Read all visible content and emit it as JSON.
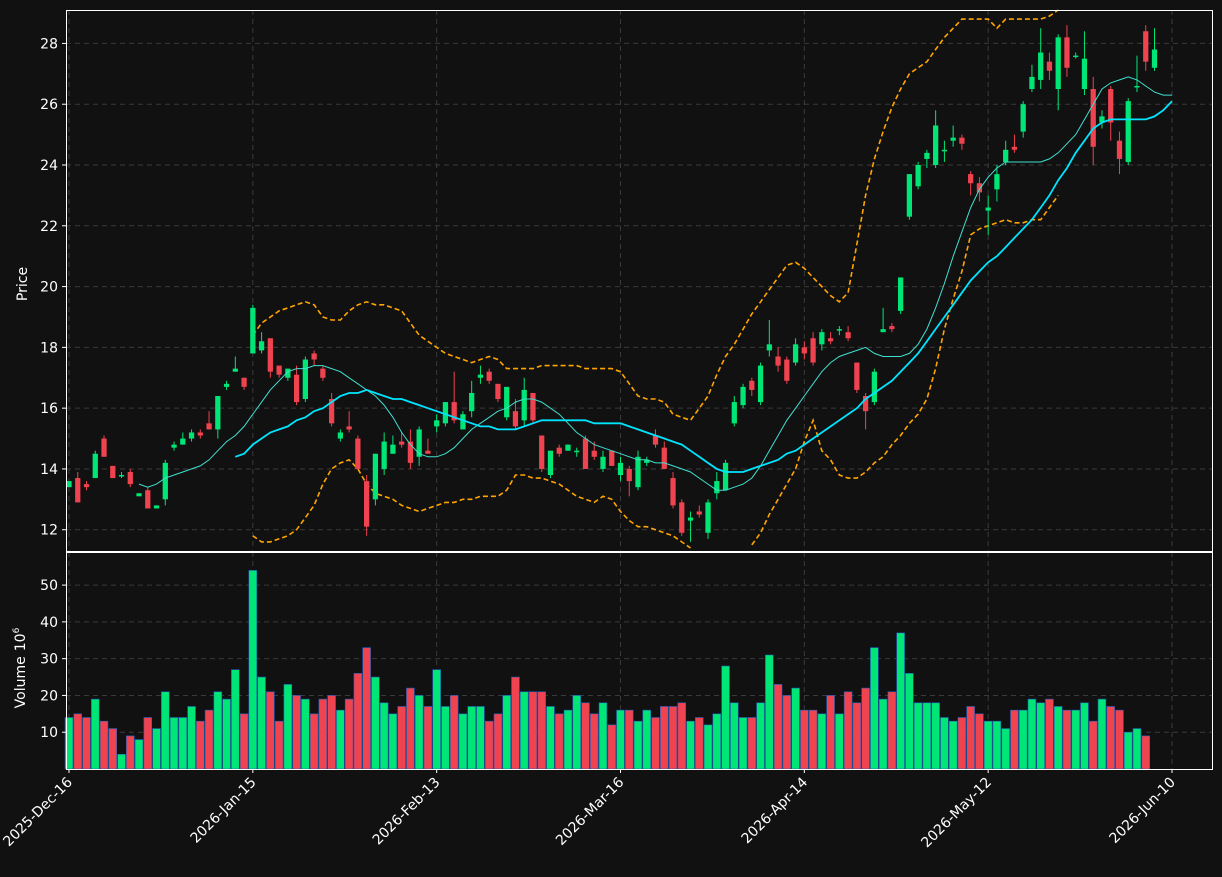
{
  "chart_data": {
    "type": "candlestick",
    "theme": {
      "background": "#111111",
      "up_color": "#00e676",
      "down_color": "#ef4350",
      "ma_fast_color": "#40e0d0",
      "ma_slow_color": "#00e5ff",
      "band_color": "#ffa500",
      "grid_color": "#3a3a3a"
    },
    "price_panel": {
      "ylabel": "Price",
      "ylim": [
        11.3,
        29.1
      ],
      "yticks": [
        "12",
        "14",
        "16",
        "18",
        "20",
        "22",
        "24",
        "26",
        "28"
      ],
      "grid": true
    },
    "volume_panel": {
      "ylabel": "Volume",
      "ylabel_exponent": "6",
      "ylim": [
        0,
        59
      ],
      "yticks": [
        "10",
        "20",
        "30",
        "40",
        "50"
      ],
      "grid": true
    },
    "x_tick_labels": [
      {
        "index": 0,
        "label": "2025-Dec-16"
      },
      {
        "index": 21,
        "label": "2026-Jan-15"
      },
      {
        "index": 42,
        "label": "2026-Feb-13"
      },
      {
        "index": 63,
        "label": "2026-Mar-16"
      },
      {
        "index": 84,
        "label": "2026-Apr-14"
      },
      {
        "index": 105,
        "label": "2026-May-12"
      },
      {
        "index": 126,
        "label": "2026-Jun-10"
      }
    ],
    "candles": [
      [
        13.4,
        13.6,
        13.6,
        13.4
      ],
      [
        13.7,
        12.9,
        13.9,
        12.9
      ],
      [
        13.5,
        13.4,
        13.6,
        13.3
      ],
      [
        13.7,
        14.5,
        14.6,
        13.7
      ],
      [
        15.0,
        14.4,
        15.1,
        14.4
      ],
      [
        14.1,
        13.7,
        14.1,
        13.7
      ],
      [
        13.8,
        13.8,
        13.9,
        13.7
      ],
      [
        13.9,
        13.5,
        14.0,
        13.4
      ],
      [
        13.1,
        13.2,
        13.2,
        13.1
      ],
      [
        13.3,
        12.7,
        13.4,
        12.7
      ],
      [
        12.7,
        12.8,
        12.8,
        12.7
      ],
      [
        13.0,
        14.2,
        14.3,
        12.8
      ],
      [
        14.7,
        14.8,
        14.9,
        14.6
      ],
      [
        14.8,
        15.0,
        15.2,
        14.8
      ],
      [
        15.0,
        15.2,
        15.3,
        14.9
      ],
      [
        15.2,
        15.1,
        15.3,
        15.0
      ],
      [
        15.5,
        15.3,
        15.9,
        15.3
      ],
      [
        15.3,
        16.4,
        16.4,
        15.0
      ],
      [
        16.7,
        16.8,
        16.9,
        16.6
      ],
      [
        17.2,
        17.3,
        17.7,
        17.2
      ],
      [
        17.0,
        16.7,
        17.0,
        16.6
      ],
      [
        17.8,
        19.3,
        19.4,
        17.8
      ],
      [
        17.9,
        18.2,
        18.5,
        17.8
      ],
      [
        18.3,
        17.2,
        18.3,
        17.0
      ],
      [
        17.4,
        17.1,
        17.4,
        17.0
      ],
      [
        17.0,
        17.3,
        17.3,
        16.9
      ],
      [
        17.1,
        16.2,
        17.4,
        16.1
      ],
      [
        16.3,
        17.6,
        17.7,
        16.2
      ],
      [
        17.8,
        17.6,
        17.9,
        17.4
      ],
      [
        17.3,
        17.0,
        17.4,
        16.9
      ],
      [
        16.3,
        15.5,
        16.5,
        15.4
      ],
      [
        15.0,
        15.2,
        15.3,
        14.9
      ],
      [
        15.4,
        15.3,
        15.9,
        15.2
      ],
      [
        15.0,
        14.0,
        15.1,
        14.0
      ],
      [
        13.6,
        12.1,
        13.8,
        11.8
      ],
      [
        13.0,
        14.5,
        14.5,
        12.8
      ],
      [
        14.0,
        14.9,
        15.2,
        13.8
      ],
      [
        14.5,
        14.8,
        15.1,
        14.5
      ],
      [
        14.9,
        14.8,
        15.2,
        14.7
      ],
      [
        14.9,
        14.2,
        15.3,
        14.0
      ],
      [
        14.4,
        15.3,
        15.4,
        14.1
      ],
      [
        14.6,
        14.5,
        15.0,
        14.5
      ],
      [
        15.4,
        15.6,
        15.8,
        15.2
      ],
      [
        15.5,
        16.2,
        16.2,
        15.4
      ],
      [
        16.2,
        15.6,
        17.2,
        15.5
      ],
      [
        15.3,
        15.8,
        15.9,
        15.3
      ],
      [
        15.9,
        16.5,
        16.9,
        15.7
      ],
      [
        17.0,
        17.1,
        17.4,
        16.8
      ],
      [
        17.2,
        16.9,
        17.3,
        16.8
      ],
      [
        16.8,
        16.3,
        16.8,
        16.2
      ],
      [
        15.7,
        16.7,
        16.7,
        15.6
      ],
      [
        15.9,
        15.4,
        16.3,
        15.3
      ],
      [
        15.6,
        16.6,
        17.0,
        15.4
      ],
      [
        16.5,
        15.6,
        16.5,
        15.5
      ],
      [
        15.1,
        14.0,
        15.1,
        13.9
      ],
      [
        13.8,
        14.6,
        14.6,
        13.7
      ],
      [
        14.7,
        14.5,
        14.8,
        14.4
      ],
      [
        14.6,
        14.8,
        14.8,
        14.6
      ],
      [
        14.6,
        14.6,
        14.7,
        14.4
      ],
      [
        15.0,
        14.0,
        15.1,
        14.0
      ],
      [
        14.6,
        14.4,
        14.9,
        14.3
      ],
      [
        14.0,
        14.4,
        14.6,
        13.9
      ],
      [
        14.6,
        14.1,
        14.6,
        14.1
      ],
      [
        13.8,
        14.2,
        14.4,
        13.6
      ],
      [
        14.0,
        13.6,
        14.1,
        13.1
      ],
      [
        13.4,
        14.4,
        14.6,
        13.3
      ],
      [
        14.2,
        14.3,
        14.4,
        14.1
      ],
      [
        15.1,
        14.8,
        15.3,
        14.7
      ],
      [
        14.7,
        14.0,
        14.9,
        14.0
      ],
      [
        13.7,
        12.8,
        13.9,
        12.7
      ],
      [
        12.9,
        11.9,
        13.0,
        11.8
      ],
      [
        12.3,
        12.4,
        12.6,
        11.6
      ],
      [
        12.6,
        12.5,
        12.8,
        12.4
      ],
      [
        11.9,
        12.9,
        13.0,
        11.7
      ],
      [
        13.2,
        13.6,
        13.9,
        13.0
      ],
      [
        13.3,
        14.2,
        14.3,
        13.3
      ],
      [
        15.5,
        16.2,
        16.4,
        15.4
      ],
      [
        16.1,
        16.7,
        16.8,
        16.0
      ],
      [
        16.9,
        16.6,
        17.0,
        16.4
      ],
      [
        16.2,
        17.4,
        17.5,
        16.1
      ],
      [
        17.9,
        18.1,
        18.9,
        17.7
      ],
      [
        17.7,
        17.4,
        18.0,
        17.2
      ],
      [
        17.6,
        16.9,
        17.7,
        16.8
      ],
      [
        17.5,
        18.1,
        18.3,
        17.4
      ],
      [
        18.0,
        17.8,
        18.2,
        17.6
      ],
      [
        18.3,
        17.5,
        18.5,
        17.4
      ],
      [
        18.1,
        18.5,
        18.6,
        17.9
      ],
      [
        18.3,
        18.2,
        18.5,
        18.1
      ],
      [
        18.6,
        18.6,
        18.7,
        18.4
      ],
      [
        18.5,
        18.3,
        18.7,
        18.2
      ],
      [
        17.5,
        16.6,
        17.5,
        16.5
      ],
      [
        16.4,
        15.9,
        16.5,
        15.3
      ],
      [
        16.2,
        17.2,
        17.3,
        16.1
      ],
      [
        18.5,
        18.6,
        19.3,
        18.5
      ],
      [
        18.7,
        18.6,
        18.8,
        18.5
      ],
      [
        19.2,
        20.3,
        20.3,
        19.1
      ],
      [
        22.3,
        23.7,
        23.7,
        22.2
      ],
      [
        23.3,
        24.0,
        24.1,
        23.2
      ],
      [
        24.2,
        24.4,
        24.5,
        23.9
      ],
      [
        24.0,
        25.3,
        25.8,
        23.9
      ],
      [
        24.5,
        24.5,
        24.8,
        24.1
      ],
      [
        24.8,
        24.9,
        25.3,
        24.6
      ],
      [
        24.9,
        24.7,
        25.0,
        24.5
      ],
      [
        23.7,
        23.4,
        23.8,
        23.0
      ],
      [
        23.4,
        23.1,
        23.6,
        22.8
      ],
      [
        22.5,
        22.6,
        23.0,
        21.7
      ],
      [
        23.2,
        23.7,
        24.0,
        22.8
      ],
      [
        24.1,
        24.5,
        24.8,
        24.0
      ],
      [
        24.6,
        24.5,
        25.0,
        24.4
      ],
      [
        25.1,
        26.0,
        26.1,
        24.9
      ],
      [
        26.5,
        26.9,
        27.3,
        26.4
      ],
      [
        26.8,
        27.7,
        28.5,
        26.5
      ],
      [
        27.4,
        27.1,
        27.7,
        26.8
      ],
      [
        26.5,
        28.2,
        28.3,
        25.8
      ],
      [
        28.2,
        27.2,
        28.6,
        26.9
      ],
      [
        27.6,
        27.6,
        27.7,
        27.5
      ],
      [
        26.5,
        27.5,
        28.4,
        26.3
      ],
      [
        26.5,
        24.6,
        26.9,
        24.0
      ],
      [
        25.4,
        25.6,
        25.8,
        25.2
      ],
      [
        26.5,
        25.4,
        26.6,
        24.8
      ],
      [
        24.8,
        24.2,
        25.1,
        23.7
      ],
      [
        24.1,
        26.1,
        26.2,
        24.0
      ],
      [
        26.6,
        26.6,
        27.6,
        26.4
      ],
      [
        28.4,
        27.4,
        28.6,
        27.1
      ],
      [
        27.2,
        27.8,
        28.5,
        27.1
      ]
    ],
    "volume_millions": [
      14,
      15,
      14,
      19,
      13,
      11,
      4,
      9,
      8,
      14,
      11,
      21,
      14,
      14,
      17,
      13,
      16,
      21,
      19,
      27,
      15,
      54,
      25,
      21,
      13,
      23,
      20,
      19,
      15,
      19,
      20,
      16,
      19,
      26,
      33,
      25,
      18,
      15,
      17,
      22,
      20,
      17,
      27,
      17,
      20,
      15,
      17,
      17,
      13,
      15,
      20,
      25,
      21,
      21,
      21,
      17,
      15,
      16,
      20,
      18,
      15,
      18,
      12,
      16,
      16,
      13,
      16,
      14,
      17,
      17,
      18,
      13,
      14,
      12,
      15,
      28,
      18,
      14,
      14,
      18,
      31,
      23,
      20,
      22,
      16,
      16,
      15,
      20,
      15,
      21,
      18,
      22,
      33,
      19,
      21,
      37,
      26,
      18,
      18,
      18,
      14,
      13,
      14,
      17,
      15,
      13,
      13,
      11,
      16,
      16,
      19,
      18,
      19,
      17,
      16,
      16,
      18,
      13,
      19,
      17,
      16,
      10,
      11,
      9
    ],
    "overlays": [
      {
        "kind": "fast_ma",
        "start": 8,
        "values": [
          13.5,
          13.4,
          13.5,
          13.7,
          13.8,
          13.9,
          14.0,
          14.1,
          14.3,
          14.6,
          14.9,
          15.1,
          15.4,
          15.8,
          16.2,
          16.6,
          16.9,
          17.2,
          17.3,
          17.3,
          17.4,
          17.4,
          17.3,
          17.2,
          17.0,
          16.8,
          16.6,
          16.4,
          16.1,
          15.7,
          15.2,
          14.8,
          14.5,
          14.4,
          14.4,
          14.5,
          14.7,
          15.0,
          15.3,
          15.5,
          15.7,
          15.9,
          16.0,
          16.2,
          16.3,
          16.3,
          16.2,
          16.0,
          15.8,
          15.5,
          15.2,
          15.0,
          14.8,
          14.7,
          14.6,
          14.5,
          14.4,
          14.3,
          14.3,
          14.2,
          14.2,
          14.1,
          14.0,
          13.9,
          13.7,
          13.5,
          13.3,
          13.3,
          13.4,
          13.5,
          13.7,
          14.1,
          14.6,
          15.1,
          15.6,
          16.0,
          16.4,
          16.8,
          17.2,
          17.5,
          17.7,
          17.8,
          17.9,
          18.0,
          17.8,
          17.7,
          17.7,
          17.7,
          17.8,
          18.1,
          18.6,
          19.3,
          20.1,
          21.0,
          21.8,
          22.6,
          23.2,
          23.6,
          23.9,
          24.1,
          24.1,
          24.1,
          24.1,
          24.1,
          24.2,
          24.4,
          24.7,
          25.0,
          25.5,
          26.0,
          26.5,
          26.7,
          26.8,
          26.9,
          26.8,
          26.6,
          26.4,
          26.3,
          26.3
        ]
      },
      {
        "kind": "slow_ma",
        "start": 19,
        "values": [
          14.4,
          14.5,
          14.8,
          15.0,
          15.2,
          15.3,
          15.4,
          15.6,
          15.7,
          15.9,
          16.0,
          16.2,
          16.4,
          16.5,
          16.5,
          16.6,
          16.5,
          16.4,
          16.3,
          16.3,
          16.2,
          16.1,
          16.0,
          15.9,
          15.8,
          15.7,
          15.6,
          15.5,
          15.4,
          15.4,
          15.3,
          15.3,
          15.3,
          15.4,
          15.5,
          15.6,
          15.6,
          15.6,
          15.6,
          15.6,
          15.6,
          15.5,
          15.5,
          15.5,
          15.5,
          15.4,
          15.3,
          15.2,
          15.1,
          15.0,
          14.9,
          14.8,
          14.6,
          14.4,
          14.2,
          14.0,
          13.9,
          13.9,
          13.9,
          14.0,
          14.1,
          14.2,
          14.3,
          14.5,
          14.6,
          14.8,
          15.0,
          15.2,
          15.4,
          15.6,
          15.8,
          16.0,
          16.3,
          16.5,
          16.7,
          16.9,
          17.2,
          17.5,
          17.8,
          18.2,
          18.6,
          19.0,
          19.4,
          19.8,
          20.2,
          20.5,
          20.8,
          21.0,
          21.3,
          21.6,
          21.9,
          22.2,
          22.6,
          23.0,
          23.5,
          23.9,
          24.4,
          24.8,
          25.2,
          25.4,
          25.5,
          25.5,
          25.5,
          25.5,
          25.5,
          25.6,
          25.8,
          26.1
        ]
      },
      {
        "kind": "upper_band",
        "start": 19,
        "values": [
          null,
          null,
          18.4,
          18.8,
          19.0,
          19.2,
          19.3,
          19.4,
          19.5,
          19.4,
          19.0,
          18.9,
          18.9,
          19.2,
          19.4,
          19.5,
          19.4,
          19.4,
          19.3,
          19.2,
          18.8,
          18.4,
          18.2,
          18.0,
          17.8,
          17.7,
          17.6,
          17.5,
          17.6,
          17.7,
          17.6,
          17.3,
          17.3,
          17.3,
          17.3,
          17.4,
          17.4,
          17.4,
          17.4,
          17.4,
          17.3,
          17.3,
          17.3,
          17.3,
          17.2,
          16.8,
          16.4,
          16.3,
          16.3,
          16.2,
          15.8,
          15.7,
          15.6,
          16.0,
          16.4,
          17.1,
          17.7,
          18.1,
          18.6,
          19.1,
          19.5,
          19.9,
          20.3,
          20.7,
          20.8,
          20.6,
          20.3,
          20.0,
          19.7,
          19.5,
          19.8,
          21.4,
          23.0,
          24.2,
          25.1,
          25.9,
          26.5,
          27.0,
          27.2,
          27.4,
          27.8,
          28.2,
          28.5,
          28.8,
          28.8,
          28.8,
          28.8,
          28.5,
          28.8,
          28.8,
          28.8,
          28.8,
          28.8,
          28.9,
          29.1
        ]
      },
      {
        "kind": "lower_band",
        "start": 19,
        "values": [
          null,
          null,
          11.8,
          11.6,
          11.6,
          11.7,
          11.8,
          12.0,
          12.4,
          12.8,
          13.5,
          14.0,
          14.2,
          14.3,
          14.0,
          13.5,
          13.2,
          13.1,
          13.0,
          12.8,
          12.7,
          12.6,
          12.7,
          12.8,
          12.9,
          12.9,
          13.0,
          13.0,
          13.1,
          13.1,
          13.1,
          13.3,
          13.8,
          13.8,
          13.7,
          13.7,
          13.6,
          13.5,
          13.3,
          13.1,
          13.0,
          12.9,
          13.1,
          13.0,
          12.6,
          12.3,
          12.1,
          12.1,
          12.0,
          11.9,
          11.8,
          11.6,
          11.4,
          11.2,
          11.0,
          10.9,
          10.9,
          11.0,
          11.2,
          11.5,
          11.9,
          12.5,
          13.0,
          13.5,
          14.0,
          14.9,
          15.6,
          14.6,
          14.3,
          13.8,
          13.7,
          13.7,
          13.9,
          14.2,
          14.4,
          14.8,
          15.1,
          15.5,
          15.8,
          16.3,
          17.3,
          18.6,
          19.6,
          20.5,
          21.7,
          21.9,
          22.0,
          22.1,
          22.2,
          22.1,
          22.1,
          22.2,
          22.2,
          22.6,
          23.0
        ]
      }
    ]
  }
}
